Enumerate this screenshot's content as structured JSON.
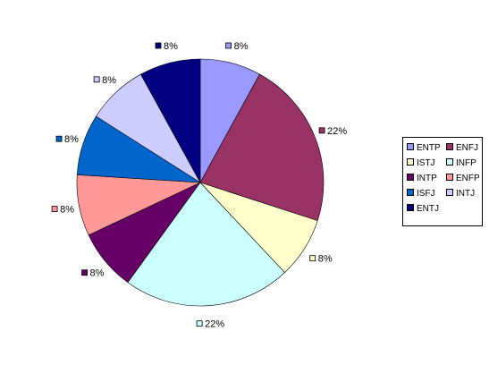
{
  "chart_data": {
    "type": "pie",
    "title": "",
    "slices": [
      {
        "label": "ENTP",
        "value": 8,
        "display": "8%",
        "color": "#9999FF"
      },
      {
        "label": "ENFJ",
        "value": 22,
        "display": "22%",
        "color": "#993366"
      },
      {
        "label": "ISTJ",
        "value": 8,
        "display": "8%",
        "color": "#FFFFCC"
      },
      {
        "label": "INFP",
        "value": 22,
        "display": "22%",
        "color": "#CCFFFF"
      },
      {
        "label": "INTP",
        "value": 8,
        "display": "8%",
        "color": "#660066"
      },
      {
        "label": "ENFP",
        "value": 8,
        "display": "8%",
        "color": "#FF9999"
      },
      {
        "label": "ISFJ",
        "value": 8,
        "display": "8%",
        "color": "#0066CC"
      },
      {
        "label": "INTJ",
        "value": 8,
        "display": "8%",
        "color": "#CCCCFF"
      },
      {
        "label": "ENTJ",
        "value": 8,
        "display": "8%",
        "color": "#000080"
      }
    ],
    "legend_position": "right",
    "legend_columns": 2
  }
}
